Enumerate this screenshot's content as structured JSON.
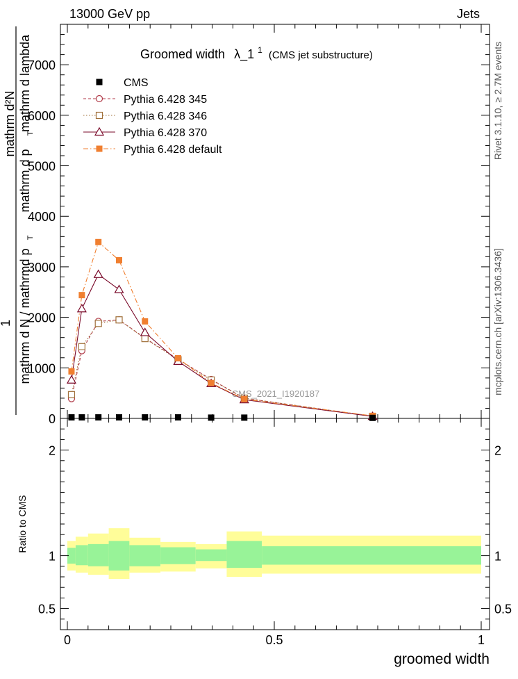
{
  "header": {
    "left": "13000 GeV pp",
    "right": "Jets"
  },
  "side_labels": {
    "rivet": "Rivet 3.1.10, ≥ 2.7M events",
    "mcplots": "mcplots.cern.ch [arXiv:1306.3436]"
  },
  "chart_data": {
    "type": "line",
    "title": "Groomed width",
    "title_symbol": "λ_1",
    "title_sup": "1",
    "title_note": "(CMS jet substructure)",
    "watermark": "CMS_2021_I1920187",
    "xlabel": "groomed width",
    "ylabel_main_top": "mathrm d²N",
    "ylabel_main_top2": "mathrm d p",
    "ylabel_main_top3": "mathrm d lambda",
    "ylabel_main_top_sub": "T",
    "ylabel_main_one": "1",
    "ylabel_main_bottom": "mathrm d N / mathrmd p",
    "ylabel_main_bottom_sub": "T",
    "ylabel_ratio": "Ratio to CMS",
    "xlim": [
      0,
      1
    ],
    "ylim": [
      0,
      7800
    ],
    "ratio_ylim": [
      0.3,
      2.3
    ],
    "x_ticks": [
      0,
      0.5,
      1
    ],
    "x_tick_labels": [
      "0",
      "0.5",
      "1"
    ],
    "y_ticks": [
      0,
      1000,
      2000,
      3000,
      4000,
      5000,
      6000,
      7000
    ],
    "y_tick_labels": [
      "0",
      "1000",
      "2000",
      "3000",
      "4000",
      "5000",
      "6000",
      "7000"
    ],
    "ratio_ticks": [
      0.5,
      1,
      2
    ],
    "ratio_tick_labels": [
      "0.5",
      "1",
      "2"
    ],
    "legend_position": "top-left",
    "series": [
      {
        "name": "CMS",
        "color": "#000000",
        "marker": "filled-square",
        "line": "none",
        "x": [
          0.01,
          0.035,
          0.075,
          0.125,
          0.1875,
          0.2675,
          0.3475,
          0.4275,
          0.7375
        ],
        "y": [
          20,
          20,
          20,
          20,
          20,
          20,
          15,
          15,
          10
        ]
      },
      {
        "name": "Pythia 6.428 345",
        "color": "#b03a48",
        "marker": "open-circle",
        "line": "dashed",
        "x": [
          0.01,
          0.035,
          0.075,
          0.125,
          0.1875,
          0.2675,
          0.3475,
          0.4275,
          0.7375
        ],
        "y": [
          390,
          1340,
          1920,
          1950,
          1590,
          1170,
          770,
          400,
          40
        ]
      },
      {
        "name": "Pythia 6.428 346",
        "color": "#a0703a",
        "marker": "open-square",
        "line": "dotted",
        "x": [
          0.01,
          0.035,
          0.075,
          0.125,
          0.1875,
          0.2675,
          0.3475,
          0.4275,
          0.7375
        ],
        "y": [
          470,
          1420,
          1880,
          1950,
          1580,
          1160,
          760,
          400,
          40
        ]
      },
      {
        "name": "Pythia 6.428 370",
        "color": "#7a0a2a",
        "marker": "open-triangle",
        "line": "solid",
        "x": [
          0.01,
          0.035,
          0.075,
          0.125,
          0.1875,
          0.2675,
          0.3475,
          0.4275,
          0.7375
        ],
        "y": [
          760,
          2170,
          2850,
          2550,
          1700,
          1130,
          690,
          370,
          40
        ]
      },
      {
        "name": "Pythia 6.428 default",
        "color": "#f07f30",
        "marker": "filled-square",
        "line": "dash-dot",
        "x": [
          0.01,
          0.035,
          0.075,
          0.125,
          0.1875,
          0.2675,
          0.3475,
          0.4275,
          0.7375
        ],
        "y": [
          930,
          2440,
          3490,
          3130,
          1920,
          1190,
          700,
          380,
          50
        ]
      }
    ],
    "ratio_bands": {
      "inner_color": "#98f398",
      "outer_color": "#fffd99",
      "edges": [
        0,
        0.02,
        0.05,
        0.1,
        0.15,
        0.225,
        0.31,
        0.385,
        0.47,
        1
      ],
      "inner_low": [
        0.925,
        0.91,
        0.9,
        0.86,
        0.9,
        0.92,
        0.95,
        0.885,
        0.915
      ],
      "inner_high": [
        1.075,
        1.1,
        1.11,
        1.14,
        1.1,
        1.08,
        1.06,
        1.14,
        1.09
      ],
      "outer_low": [
        0.86,
        0.84,
        0.82,
        0.78,
        0.84,
        0.85,
        0.88,
        0.8,
        0.83
      ],
      "outer_high": [
        1.14,
        1.18,
        1.21,
        1.26,
        1.17,
        1.13,
        1.11,
        1.23,
        1.19
      ]
    }
  }
}
